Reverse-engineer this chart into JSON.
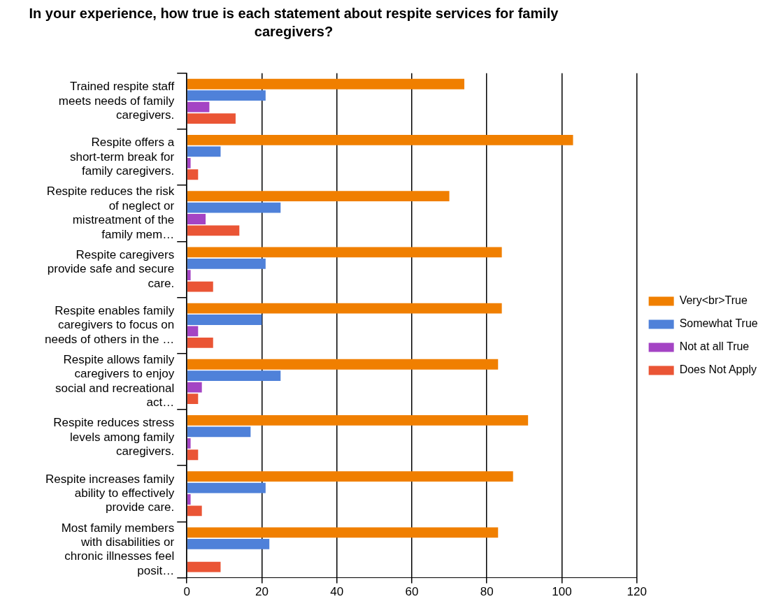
{
  "chart_data": {
    "type": "bar",
    "orientation": "horizontal",
    "title": "In your experience, how true is each statement about respite services for family caregivers?",
    "categories": [
      "Trained respite staff meets needs of family caregivers.",
      "Respite offers a short-term break for family caregivers.",
      "Respite reduces the risk of neglect or mistreatment of the family mem…",
      "Respite caregivers provide safe and secure care.",
      "Respite enables family caregivers to focus on needs of others in the …",
      "Respite allows family caregivers to enjoy social and recreational act…",
      "Respite reduces stress levels among family caregivers.",
      "Respite increases family ability to effectively provide care.",
      "Most family members with disabilities or chronic illnesses feel posit…"
    ],
    "series": [
      {
        "name": "Very<br>True",
        "color": "#f07f00",
        "values": [
          74,
          103,
          70,
          84,
          84,
          83,
          91,
          87,
          83
        ]
      },
      {
        "name": "Somewhat True",
        "color": "#4f81d9",
        "values": [
          21,
          9,
          25,
          21,
          20,
          25,
          17,
          21,
          22
        ]
      },
      {
        "name": "Not at all True",
        "color": "#a444c4",
        "values": [
          6,
          1,
          5,
          1,
          3,
          4,
          1,
          1,
          null
        ]
      },
      {
        "name": "Does Not Apply",
        "color": "#ea5535",
        "values": [
          13,
          3,
          14,
          7,
          7,
          3,
          3,
          4,
          9
        ]
      }
    ],
    "xlim": [
      0,
      120
    ],
    "xticks": [
      0,
      20,
      40,
      60,
      80,
      100,
      120
    ],
    "grid": "x",
    "legend": "right"
  }
}
